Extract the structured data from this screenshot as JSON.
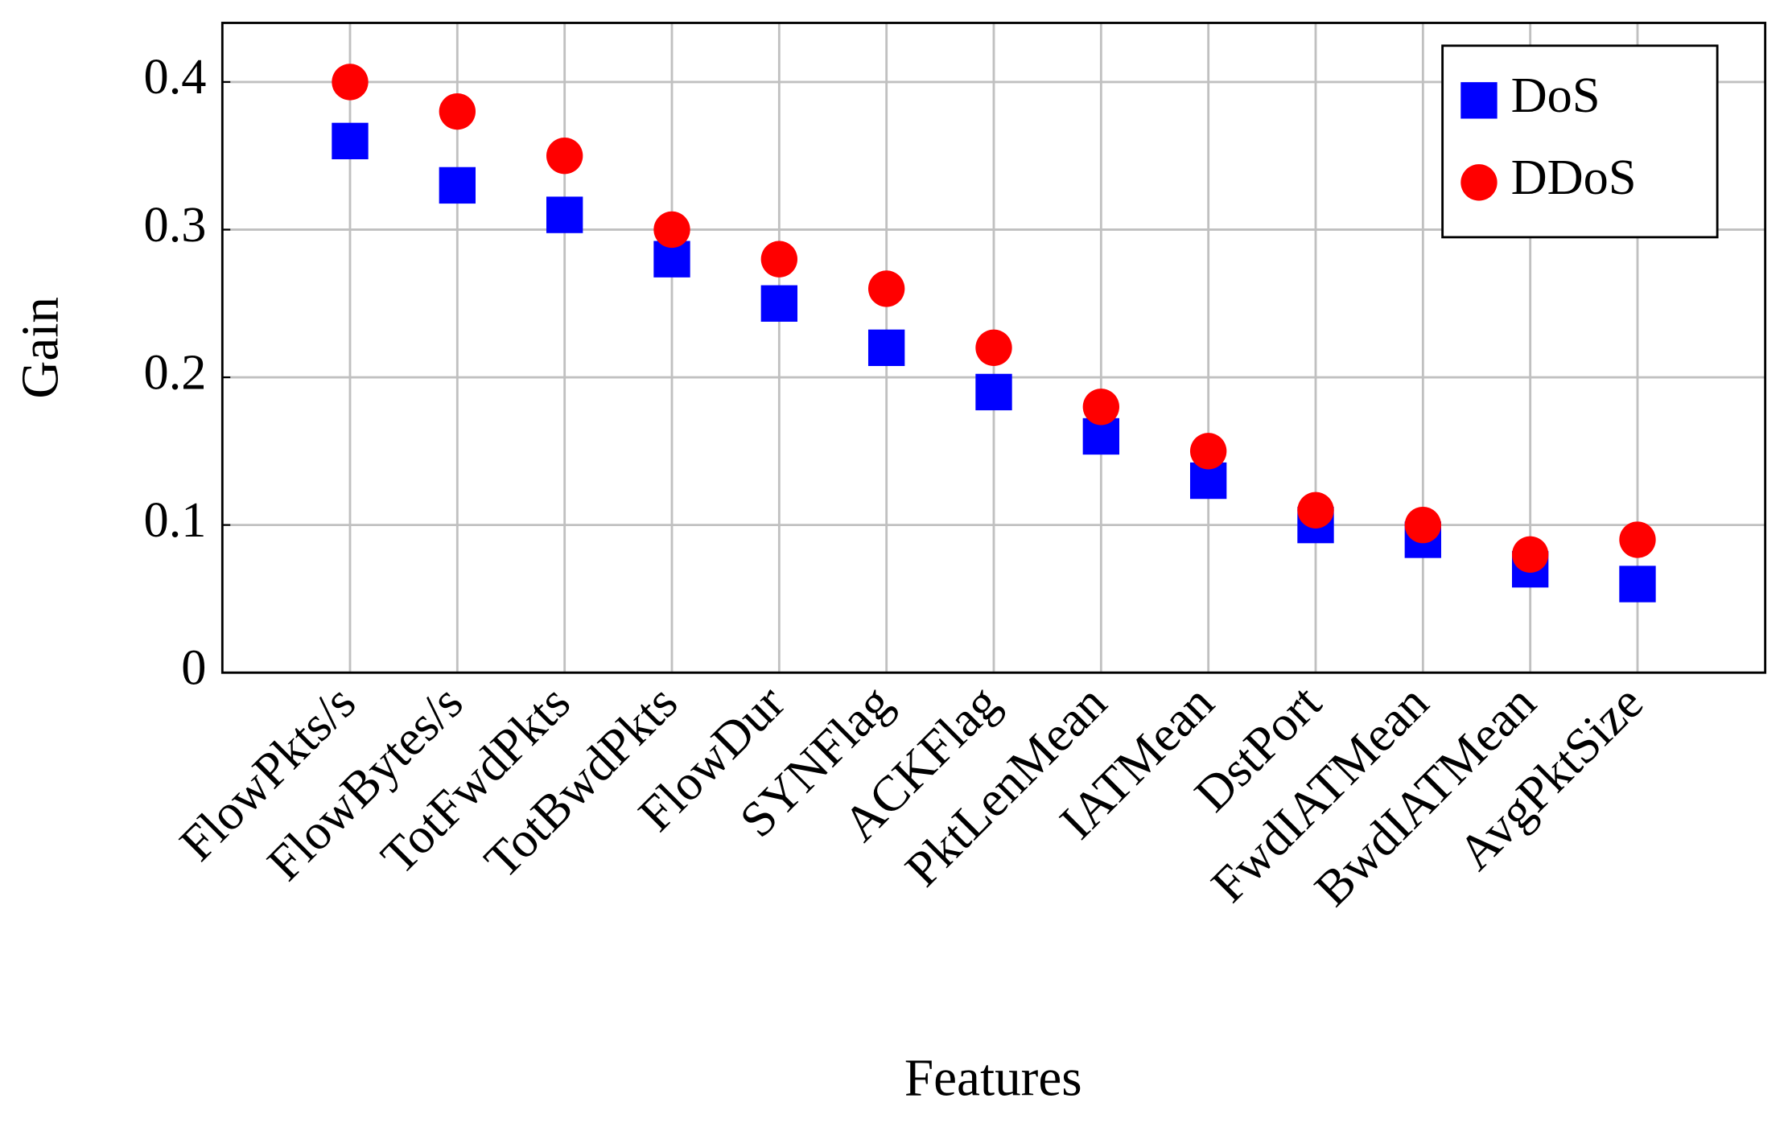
{
  "chart_data": {
    "type": "scatter",
    "x_label": "Features",
    "y_label": "Gain",
    "categories": [
      "FlowPkts/s",
      "FlowBytes/s",
      "TotFwdPkts",
      "TotBwdPkts",
      "FlowDur",
      "SYNFlag",
      "ACKFlag",
      "PktLenMean",
      "IATMean",
      "DstPort",
      "FwdIATMean",
      "BwdIATMean",
      "AvgPktSize"
    ],
    "series": [
      {
        "name": "DoS",
        "color": "#0000ff",
        "marker": "square",
        "values": [
          0.36,
          0.33,
          0.31,
          0.28,
          0.25,
          0.22,
          0.19,
          0.16,
          0.13,
          0.1,
          0.09,
          0.07,
          0.06
        ]
      },
      {
        "name": "DDoS",
        "color": "#ff0000",
        "marker": "circle",
        "values": [
          0.4,
          0.38,
          0.35,
          0.3,
          0.28,
          0.26,
          0.22,
          0.18,
          0.15,
          0.11,
          0.1,
          0.08,
          0.09
        ]
      }
    ],
    "ylim": [
      0,
      0.44
    ],
    "yticks": [
      0,
      0.1,
      0.2,
      0.3,
      0.4
    ],
    "grid": true,
    "legend_position": "upper right"
  }
}
